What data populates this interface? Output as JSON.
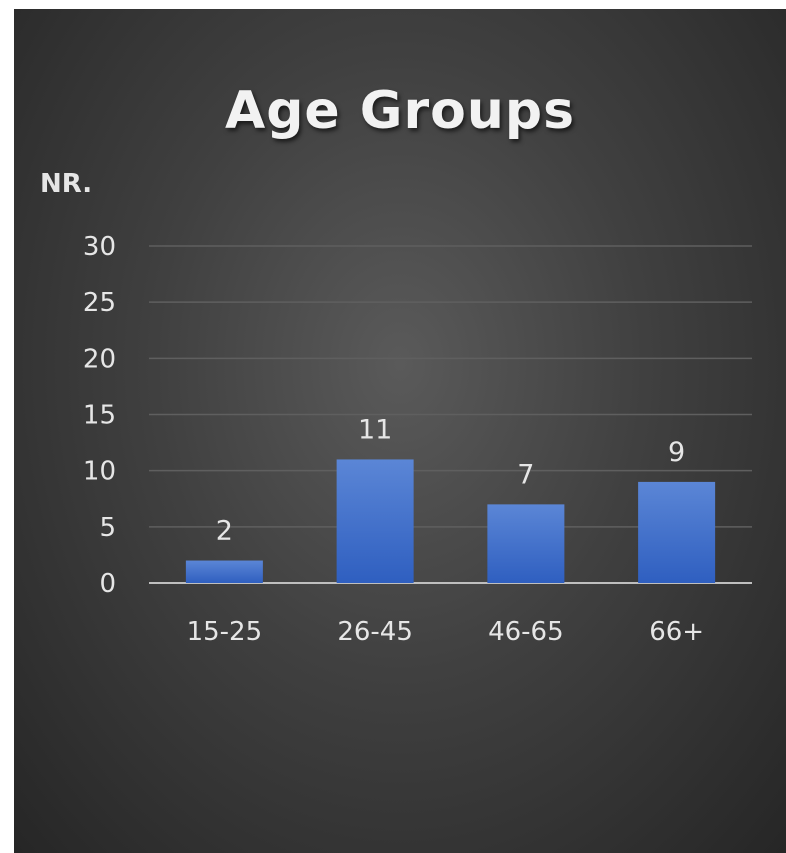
{
  "chart_data": {
    "type": "bar",
    "title": "Age Groups",
    "ylabel": "NR.",
    "xlabel": "",
    "categories": [
      "15-25",
      "26-45",
      "46-65",
      "66+"
    ],
    "values": [
      2,
      11,
      7,
      9
    ],
    "ylim": [
      0,
      30
    ],
    "yticks": [
      0,
      5,
      10,
      15,
      20,
      25,
      30
    ],
    "grid": true,
    "data_labels": true,
    "bar_color": "#4472c4",
    "background_color": "#404040",
    "text_color": "#e6e6e6"
  }
}
